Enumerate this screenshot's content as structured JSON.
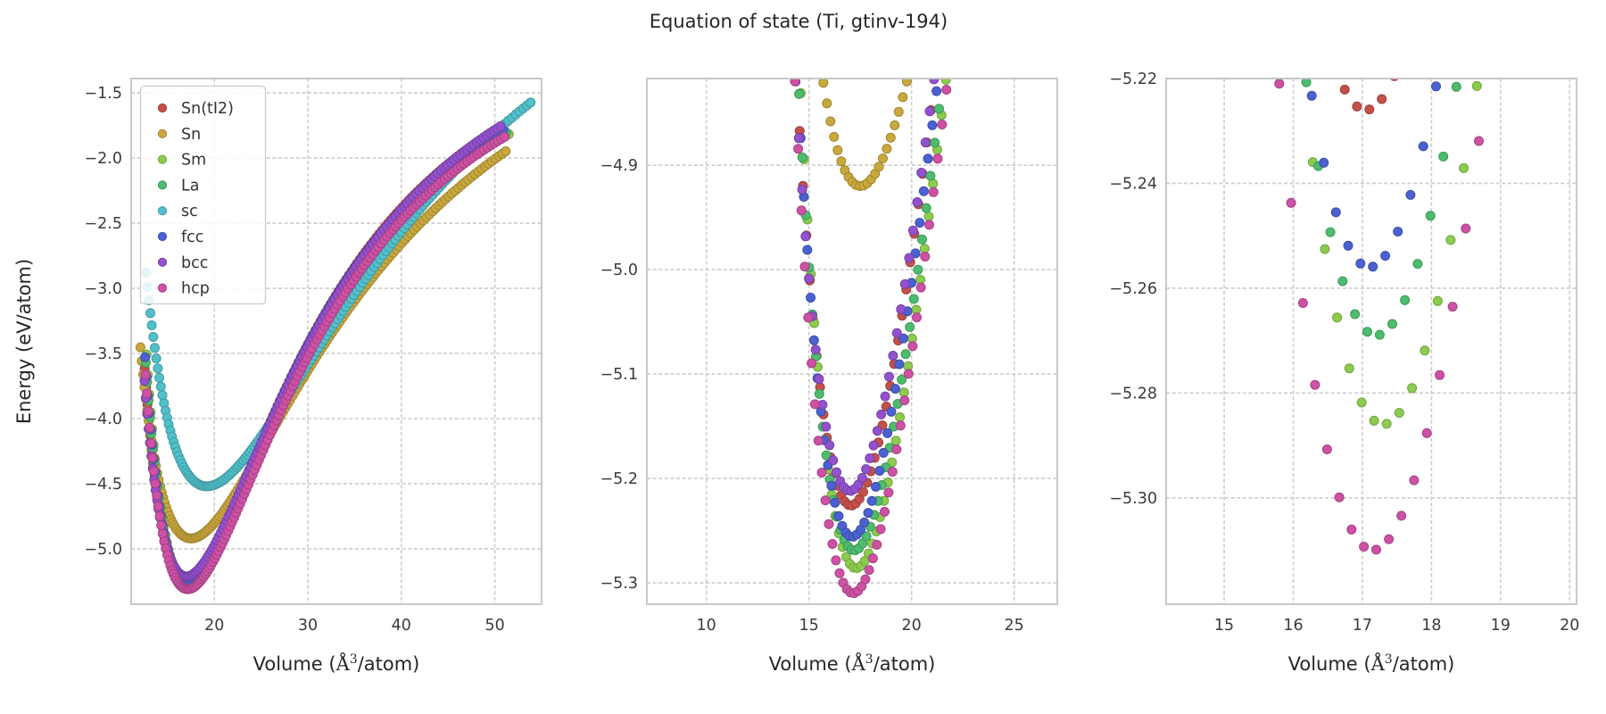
{
  "title": "Equation of state (Ti, gtinv-194)",
  "ylabel": "Energy (eV/atom)",
  "xlabel_parts": {
    "prefix": "Volume (",
    "symbol": "Å",
    "sup": "3",
    "suffix": "/atom)"
  },
  "legend": [
    "Sn(tI2)",
    "Sn",
    "Sm",
    "La",
    "sc",
    "fcc",
    "bcc",
    "hcp"
  ],
  "style": {
    "background": "#ffffff",
    "grid_color": "#cccccc",
    "frame_color": "#c3c3c3",
    "tick_color": "#3b3b3b",
    "label_color": "#262626",
    "legend_edge": "#cccccc",
    "legend_text": "#333333"
  },
  "chart_data": {
    "type": "scatter",
    "title": "Equation of state (Ti, gtinv-194)",
    "xlabel": "Volume (Å³/atom)",
    "ylabel": "Energy (eV/atom)",
    "grid": true,
    "legend_position": "upper left",
    "marker": "circle",
    "eos_model": "E(V) = energy_min + depth*(1 - exp(-width*(V^(1/3) - volume_min^(1/3))))^2, points sampled at V = volume_min*(1+s)^3 for s from strain_min to strain_max in steps of strain_step",
    "series": [
      {
        "name": "Sn(tI2)",
        "color": "#c4504a",
        "edge_color": "#9e3f3b",
        "minimum": {
          "volume": 17.05,
          "energy": -5.226
        },
        "depth": 4.48,
        "width": 1.88,
        "strain_min": -0.097,
        "strain_max": 0.44,
        "strain_step": 0.0035
      },
      {
        "name": "Sn",
        "color": "#c9a83d",
        "edge_color": "#a28630",
        "minimum": {
          "volume": 17.5,
          "energy": -4.92
        },
        "depth": 4.5,
        "width": 1.5,
        "strain_min": -0.116,
        "strain_max": 0.433,
        "strain_step": 0.0035
      },
      {
        "name": "Sm",
        "color": "#8ccb4e",
        "edge_color": "#70a43e",
        "minimum": {
          "volume": 17.3,
          "energy": -5.286
        },
        "depth": 4.35,
        "width": 1.97,
        "strain_min": -0.097,
        "strain_max": 0.44,
        "strain_step": 0.0035
      },
      {
        "name": "La",
        "color": "#4dbd6d",
        "edge_color": "#3d9857",
        "minimum": {
          "volume": 17.2,
          "energy": -5.269
        },
        "depth": 4.4,
        "width": 1.93,
        "strain_min": -0.097,
        "strain_max": 0.44,
        "strain_step": 0.0035
      },
      {
        "name": "sc",
        "color": "#52c0cb",
        "edge_color": "#419aa3",
        "minimum": {
          "volume": 19.2,
          "energy": -4.52
        },
        "depth": 5.1,
        "width": 1.3,
        "strain_min": -0.129,
        "strain_max": 0.41,
        "strain_step": 0.0035
      },
      {
        "name": "fcc",
        "color": "#4b61d1",
        "edge_color": "#3c4ea8",
        "minimum": {
          "volume": 17.1,
          "energy": -5.256
        },
        "depth": 4.38,
        "width": 1.95,
        "strain_min": -0.097,
        "strain_max": 0.44,
        "strain_step": 0.0035
      },
      {
        "name": "bcc",
        "color": "#9351ce",
        "edge_color": "#7641a6",
        "minimum": {
          "volume": 17.0,
          "energy": -5.212
        },
        "depth": 4.55,
        "width": 1.82,
        "strain_min": -0.097,
        "strain_max": 0.44,
        "strain_step": 0.0035
      },
      {
        "name": "hcp",
        "color": "#cd51a5",
        "edge_color": "#a54184",
        "minimum": {
          "volume": 17.15,
          "energy": -5.31
        },
        "depth": 4.45,
        "width": 1.9,
        "strain_min": -0.097,
        "strain_max": 0.44,
        "strain_step": 0.0035
      }
    ],
    "panels": [
      {
        "xlim": [
          11.1,
          55.0
        ],
        "ylim": [
          -5.425,
          -1.39
        ],
        "xticks": [
          20,
          30,
          40,
          50
        ],
        "xtick_labels": [
          "20",
          "30",
          "40",
          "50"
        ],
        "yticks": [
          -1.5,
          -2.0,
          -2.5,
          -3.0,
          -3.5,
          -4.0,
          -4.5,
          -5.0
        ],
        "ytick_labels": [
          "−1.5",
          "−2.0",
          "−2.5",
          "−3.0",
          "−3.5",
          "−4.0",
          "−4.5",
          "−5.0"
        ],
        "show_legend": true,
        "show_ylabel": true
      },
      {
        "xlim": [
          7.1,
          27.1
        ],
        "ylim": [
          -5.3205,
          -4.817
        ],
        "xticks": [
          10,
          15,
          20,
          25
        ],
        "xtick_labels": [
          "10",
          "15",
          "20",
          "25"
        ],
        "yticks": [
          -4.9,
          -5.0,
          -5.1,
          -5.2,
          -5.3
        ],
        "ytick_labels": [
          "−4.9",
          "−5.0",
          "−5.1",
          "−5.2",
          "−5.3"
        ],
        "show_legend": false,
        "show_ylabel": false
      },
      {
        "xlim": [
          14.16,
          20.1
        ],
        "ylim": [
          -5.3203,
          -5.22
        ],
        "xticks": [
          15,
          16,
          17,
          18,
          19,
          20
        ],
        "xtick_labels": [
          "15",
          "16",
          "17",
          "18",
          "19",
          "20"
        ],
        "yticks": [
          -5.22,
          -5.24,
          -5.26,
          -5.28,
          -5.3
        ],
        "ytick_labels": [
          "−5.22",
          "−5.24",
          "−5.26",
          "−5.28",
          "−5.30"
        ],
        "show_legend": false,
        "show_ylabel": false
      }
    ]
  }
}
